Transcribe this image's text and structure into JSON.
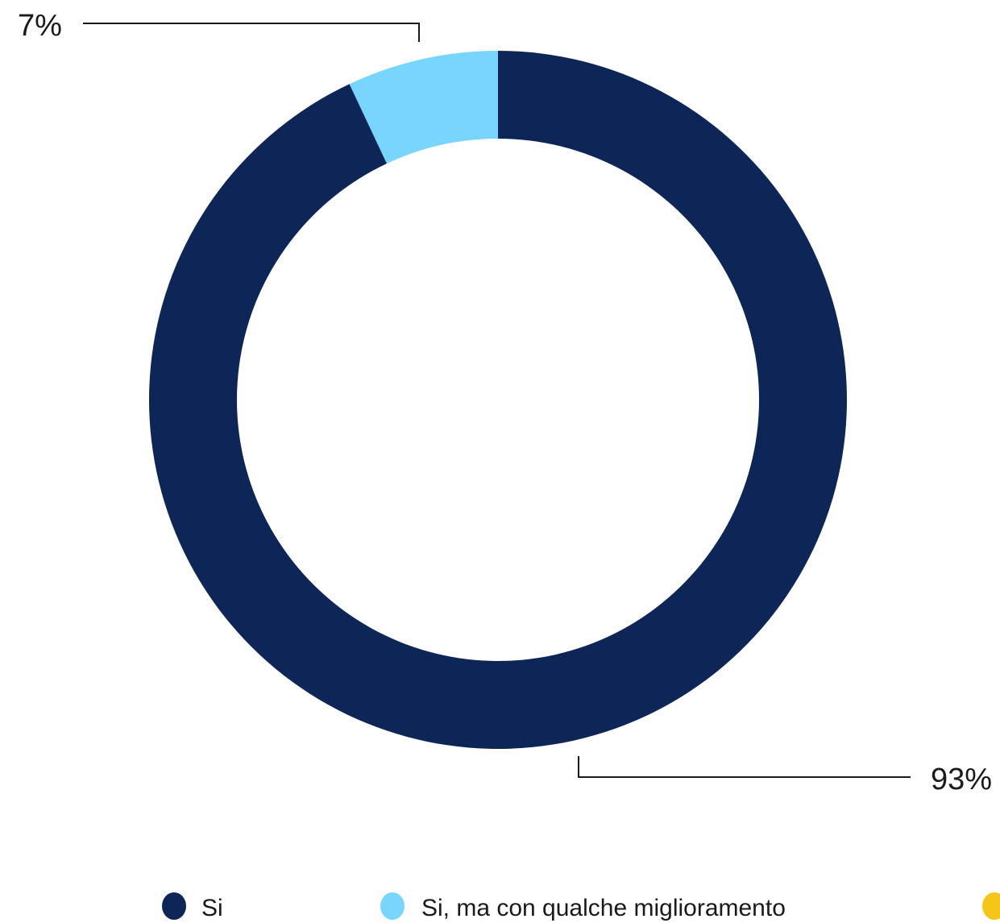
{
  "chart_data": {
    "type": "pie",
    "style": "donut",
    "title": "",
    "slices": [
      {
        "label": "Si",
        "value": 93,
        "display": "93%",
        "color": "#0d2657"
      },
      {
        "label": "Si, ma con qualche miglioramento",
        "value": 7,
        "display": "7%",
        "color": "#78d5fd"
      }
    ],
    "legend": {
      "placement": "bottom",
      "entries": [
        {
          "label": "Si",
          "color": "#0d2657"
        },
        {
          "label": "Si, ma con qualche miglioramento",
          "color": "#78d5fd"
        },
        {
          "label": "",
          "color": "#f5c518"
        }
      ]
    }
  }
}
